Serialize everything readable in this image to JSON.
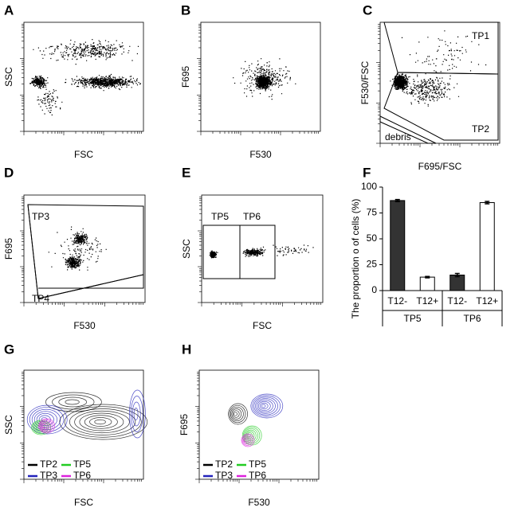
{
  "panels": [
    {
      "letter": "A",
      "x_label": "FSC",
      "y_label": "SSC"
    },
    {
      "letter": "B",
      "x_label": "F530",
      "y_label": "F695"
    },
    {
      "letter": "C",
      "x_label": "F695/FSC",
      "y_label": "F530/FSC",
      "gates": [
        "TP1",
        "TP2",
        "debris"
      ]
    },
    {
      "letter": "D",
      "x_label": "F530",
      "y_label": "F695",
      "gates": [
        "TP3",
        "TP4"
      ]
    },
    {
      "letter": "E",
      "x_label": "FSC",
      "y_label": "SSC",
      "gates": [
        "TP5",
        "TP6"
      ]
    },
    {
      "letter": "G",
      "x_label": "FSC",
      "y_label": "SSC",
      "legend": [
        {
          "name": "TP2",
          "color": "#000000"
        },
        {
          "name": "TP5",
          "color": "#22cc22"
        },
        {
          "name": "TP3",
          "color": "#2222bb"
        },
        {
          "name": "TP6",
          "color": "#dd22dd"
        }
      ]
    },
    {
      "letter": "H",
      "x_label": "F530",
      "y_label": "F695",
      "legend": [
        {
          "name": "TP2",
          "color": "#000000"
        },
        {
          "name": "TP5",
          "color": "#22cc22"
        },
        {
          "name": "TP3",
          "color": "#2222bb"
        },
        {
          "name": "TP6",
          "color": "#dd22dd"
        }
      ]
    }
  ],
  "chart_data": {
    "type": "bar",
    "letter": "F",
    "y_label": "The proportion o of cells (%)",
    "categories": [
      "T12-",
      "T12+",
      "T12-",
      "T12+"
    ],
    "groups": [
      "TP5",
      "TP6"
    ],
    "values": [
      87,
      13,
      15,
      85
    ],
    "errors": [
      1,
      0.7,
      1.5,
      1.2
    ],
    "colors": [
      "#333333",
      "#ffffff",
      "#333333",
      "#ffffff"
    ],
    "ylim": [
      0,
      100
    ],
    "yticks": [
      0,
      25,
      50,
      75,
      100
    ]
  }
}
